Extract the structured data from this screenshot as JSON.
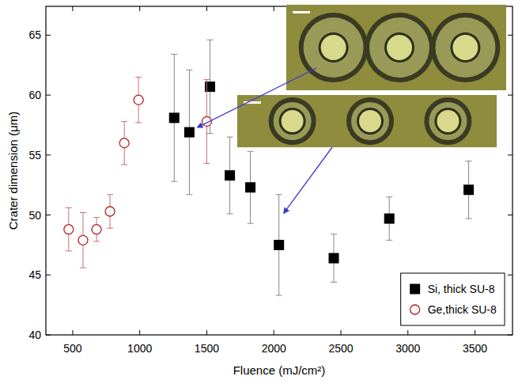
{
  "chart_data": {
    "type": "scatter",
    "x_label": "Fluence (mJ/cm²)",
    "y_label": "Crater dimension (μm)",
    "xlim": [
      300,
      3780
    ],
    "ylim": [
      40,
      67.4
    ],
    "xticks": [
      500,
      1000,
      1500,
      2000,
      2500,
      3000,
      3500
    ],
    "yticks": [
      40,
      45,
      50,
      55,
      60,
      65
    ],
    "legend": "lower right",
    "grid": false,
    "series": [
      {
        "name": "Si, thick SU-8",
        "color": "#000000",
        "marker": "square",
        "x": [
          1257,
          1370,
          1524,
          1672,
          1825,
          2038,
          2447,
          2861,
          3453
        ],
        "values": [
          58.1,
          56.9,
          60.7,
          53.3,
          52.3,
          47.5,
          46.4,
          49.7,
          52.1
        ],
        "errors": [
          5.3,
          5.2,
          3.9,
          3.2,
          3.0,
          4.2,
          2.0,
          1.8,
          2.4
        ]
      },
      {
        "name": "Ge,thick SU-8",
        "color": "#b22222",
        "marker": "circle",
        "x": [
          470,
          577,
          678,
          778,
          885,
          991,
          1500
        ],
        "values": [
          48.8,
          47.9,
          48.8,
          50.3,
          56.0,
          59.6,
          57.8
        ],
        "errors": [
          1.8,
          2.3,
          1.0,
          1.4,
          1.8,
          1.9,
          3.5
        ]
      }
    ]
  }
}
